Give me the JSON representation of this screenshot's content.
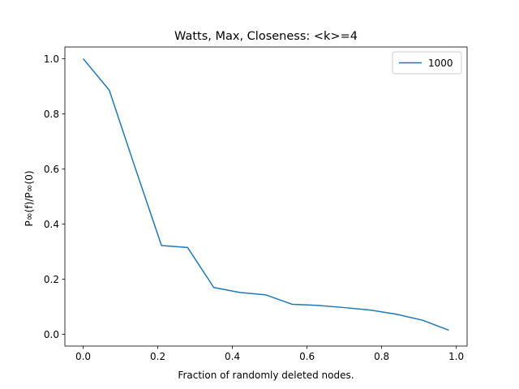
{
  "chart_data": {
    "type": "line",
    "title": "Watts, Max, Closeness: <k>=4",
    "xlabel": "Fraction of randomly deleted nodes.",
    "ylabel": "P∞(f)/P∞(0)",
    "xlim": [
      -0.049,
      1.029
    ],
    "ylim": [
      -0.0425,
      1.0425
    ],
    "xticks": [
      0.0,
      0.2,
      0.4,
      0.6,
      0.8,
      1.0
    ],
    "xtick_labels": [
      "0.0",
      "0.2",
      "0.4",
      "0.6",
      "0.8",
      "1.0"
    ],
    "yticks": [
      0.0,
      0.2,
      0.4,
      0.6,
      0.8,
      1.0
    ],
    "ytick_labels": [
      "0.0",
      "0.2",
      "0.4",
      "0.6",
      "0.8",
      "1.0"
    ],
    "grid": false,
    "legend_position": "top-right",
    "series": [
      {
        "name": "1000",
        "color": "#1f77b4",
        "x": [
          0.0,
          0.07,
          0.14,
          0.21,
          0.28,
          0.35,
          0.42,
          0.49,
          0.56,
          0.63,
          0.7,
          0.77,
          0.84,
          0.91,
          0.98
        ],
        "y": [
          1.0,
          0.886,
          0.602,
          0.322,
          0.315,
          0.17,
          0.152,
          0.143,
          0.109,
          0.105,
          0.097,
          0.088,
          0.073,
          0.051,
          0.015
        ]
      }
    ]
  }
}
